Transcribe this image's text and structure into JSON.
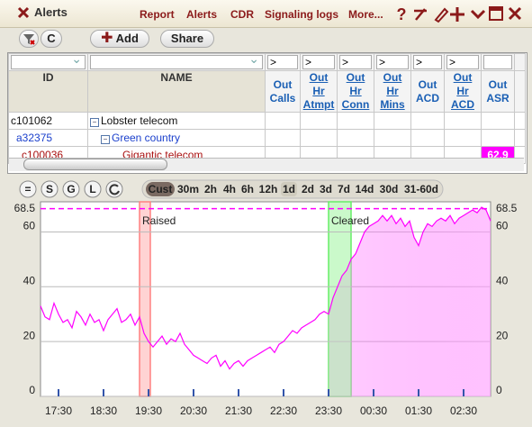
{
  "header": {
    "title": "Alerts",
    "menu": [
      "Report",
      "Alerts",
      "CDR",
      "Signaling logs",
      "More..."
    ]
  },
  "toolbar": {
    "buttons": [
      "C",
      "Add",
      "Share"
    ]
  },
  "table": {
    "filters": [
      ">",
      ">",
      ">",
      ">",
      ">",
      ">"
    ],
    "columns": [
      "ID",
      "NAME",
      "Out Calls",
      "Out Hr Atmpt",
      "Out Hr Conn",
      "Out Hr Mins",
      "Out ACD",
      "Out Hr ACD",
      "Out ASR"
    ],
    "rows": [
      {
        "id": "c101062",
        "name": "Lobster telecom"
      },
      {
        "id": "a32375",
        "name": "Green country"
      },
      {
        "id": "c100036",
        "name": "Gigantic telecom",
        "out_asr": 62.9
      }
    ]
  },
  "chart_toolbar": {
    "buttons": [
      "=",
      "S",
      "G",
      "L"
    ],
    "ranges": [
      "Cust",
      "30m",
      "2h",
      "4h",
      "6h",
      "12h",
      "1d",
      "2d",
      "3d",
      "7d",
      "14d",
      "30d",
      "31-60d"
    ],
    "selected_index": 0,
    "highlighted_index": 6
  },
  "chart_data": {
    "type": "line",
    "color": "#ff00ff",
    "values": [
      33,
      29,
      28,
      34,
      30,
      27,
      28,
      25,
      31,
      29,
      26,
      30,
      27,
      28,
      24,
      28,
      30,
      32,
      27,
      28,
      30,
      26,
      29,
      23,
      20,
      18,
      20,
      22,
      19,
      21,
      20,
      23,
      19,
      17,
      15,
      14,
      13,
      12,
      14,
      15,
      11,
      13,
      10,
      12,
      13,
      11,
      13,
      14,
      15,
      16,
      17,
      18,
      16,
      19,
      20,
      22,
      24,
      23,
      25,
      26,
      27,
      28,
      30,
      31,
      30,
      36,
      40,
      44,
      46,
      50,
      52,
      56,
      60,
      62,
      63,
      64,
      66,
      64,
      66,
      63,
      65,
      62,
      64,
      58,
      55,
      60,
      63,
      62,
      64,
      65,
      64,
      66,
      63,
      65,
      66,
      67,
      68,
      67,
      69,
      68,
      64
    ],
    "xlim": [
      0,
      100
    ],
    "xticks": [
      {
        "value": 4,
        "label": "17:30"
      },
      {
        "value": 14,
        "label": "18:30"
      },
      {
        "value": 24,
        "label": "19:30"
      },
      {
        "value": 34,
        "label": "20:30"
      },
      {
        "value": 44,
        "label": "21:30"
      },
      {
        "value": 54,
        "label": "22:30"
      },
      {
        "value": 64,
        "label": "23:30"
      },
      {
        "value": 74,
        "label": "00:30"
      },
      {
        "value": 84,
        "label": "01:30"
      },
      {
        "value": 94,
        "label": "02:30"
      }
    ],
    "ylim": [
      0,
      71
    ],
    "yticks": [
      0,
      20,
      40,
      60
    ],
    "grid": true,
    "threshold": 68.5,
    "events": [
      {
        "label": "Raised",
        "start": 22,
        "end": 24.4,
        "color": "#ff8080",
        "text_color": "#cc2222"
      },
      {
        "label": "Cleared",
        "start": 64,
        "end": 69,
        "color": "#66ee66",
        "text_color": "#22aa22"
      }
    ]
  }
}
